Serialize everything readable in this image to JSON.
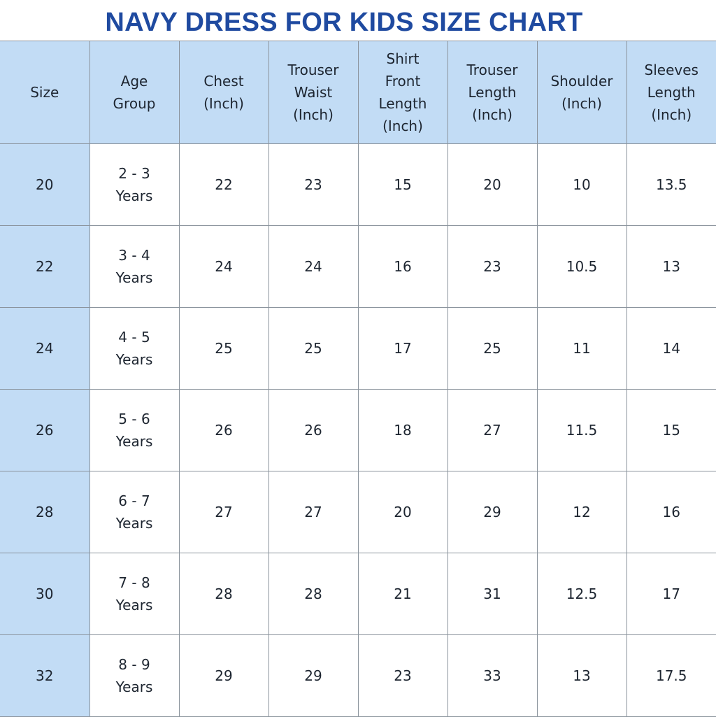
{
  "title": "NAVY DRESS FOR KIDS SIZE CHART",
  "colors": {
    "title": "#1f4aa0",
    "header_bg": "#c2dcf5",
    "size_column_bg": "#c2dcf5",
    "text": "#1d2530"
  },
  "table": {
    "headers": [
      "Size",
      "Age\nGroup",
      "Chest\n(Inch)",
      "Trouser\nWaist\n(Inch)",
      "Shirt\nFront\nLength\n(Inch)",
      "Trouser\nLength\n(Inch)",
      "Shoulder\n(Inch)",
      "Sleeves\nLength\n(Inch)"
    ],
    "rows": [
      [
        "20",
        "2 - 3\nYears",
        "22",
        "23",
        "15",
        "20",
        "10",
        "13.5"
      ],
      [
        "22",
        "3 - 4\nYears",
        "24",
        "24",
        "16",
        "23",
        "10.5",
        "13"
      ],
      [
        "24",
        "4 - 5\nYears",
        "25",
        "25",
        "17",
        "25",
        "11",
        "14"
      ],
      [
        "26",
        "5 - 6\nYears",
        "26",
        "26",
        "18",
        "27",
        "11.5",
        "15"
      ],
      [
        "28",
        "6 - 7\nYears",
        "27",
        "27",
        "20",
        "29",
        "12",
        "16"
      ],
      [
        "30",
        "7 - 8\nYears",
        "28",
        "28",
        "21",
        "31",
        "12.5",
        "17"
      ],
      [
        "32",
        "8 - 9\nYears",
        "29",
        "29",
        "23",
        "33",
        "13",
        "17.5"
      ]
    ]
  }
}
